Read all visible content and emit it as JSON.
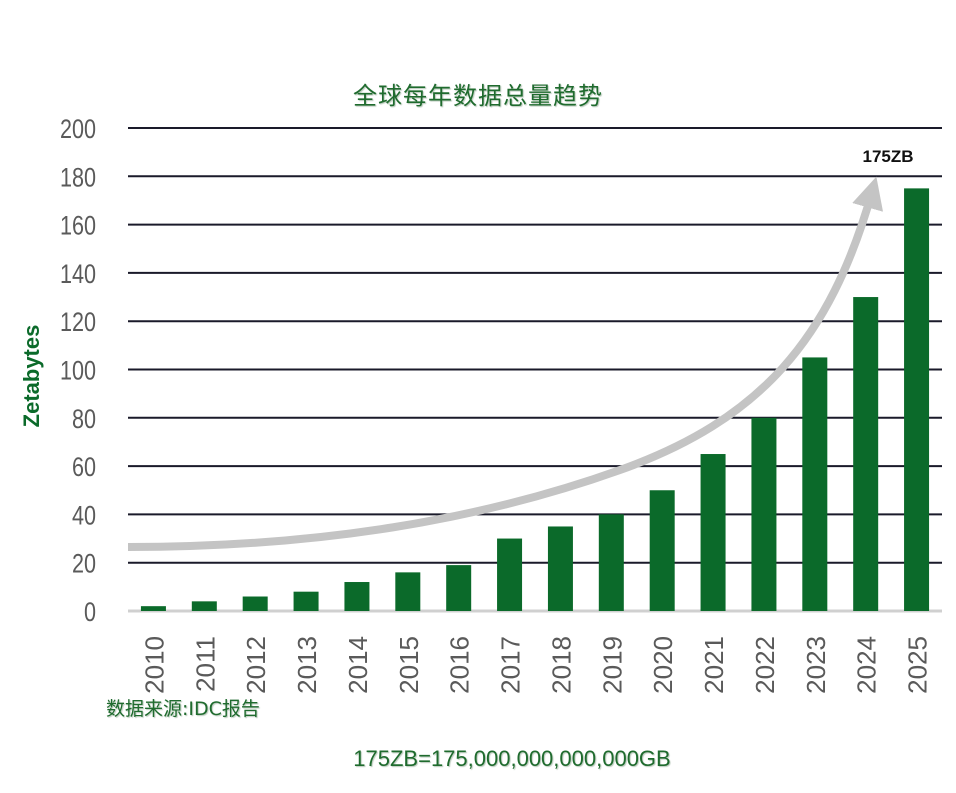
{
  "chart_data": {
    "type": "bar",
    "title": "全球每年数据总量趋势",
    "ylabel": "Zetabytes",
    "xlabel": "",
    "ylim": [
      0,
      200
    ],
    "yticks": [
      0,
      20,
      40,
      60,
      80,
      100,
      120,
      140,
      160,
      180,
      200
    ],
    "grid": true,
    "categories": [
      "2010",
      "2011",
      "2012",
      "2013",
      "2014",
      "2015",
      "2016",
      "2017",
      "2018",
      "2019",
      "2020",
      "2021",
      "2022",
      "2023",
      "2024",
      "2025"
    ],
    "values": [
      2,
      4,
      6,
      8,
      12,
      16,
      19,
      30,
      35,
      40,
      50,
      65,
      80,
      105,
      130,
      175
    ],
    "bar_color": "#0b6a2a",
    "annotation": "175ZB",
    "source": "数据来源:IDC报告",
    "footnote": "175ZB=175,000,000,000,000GB"
  }
}
